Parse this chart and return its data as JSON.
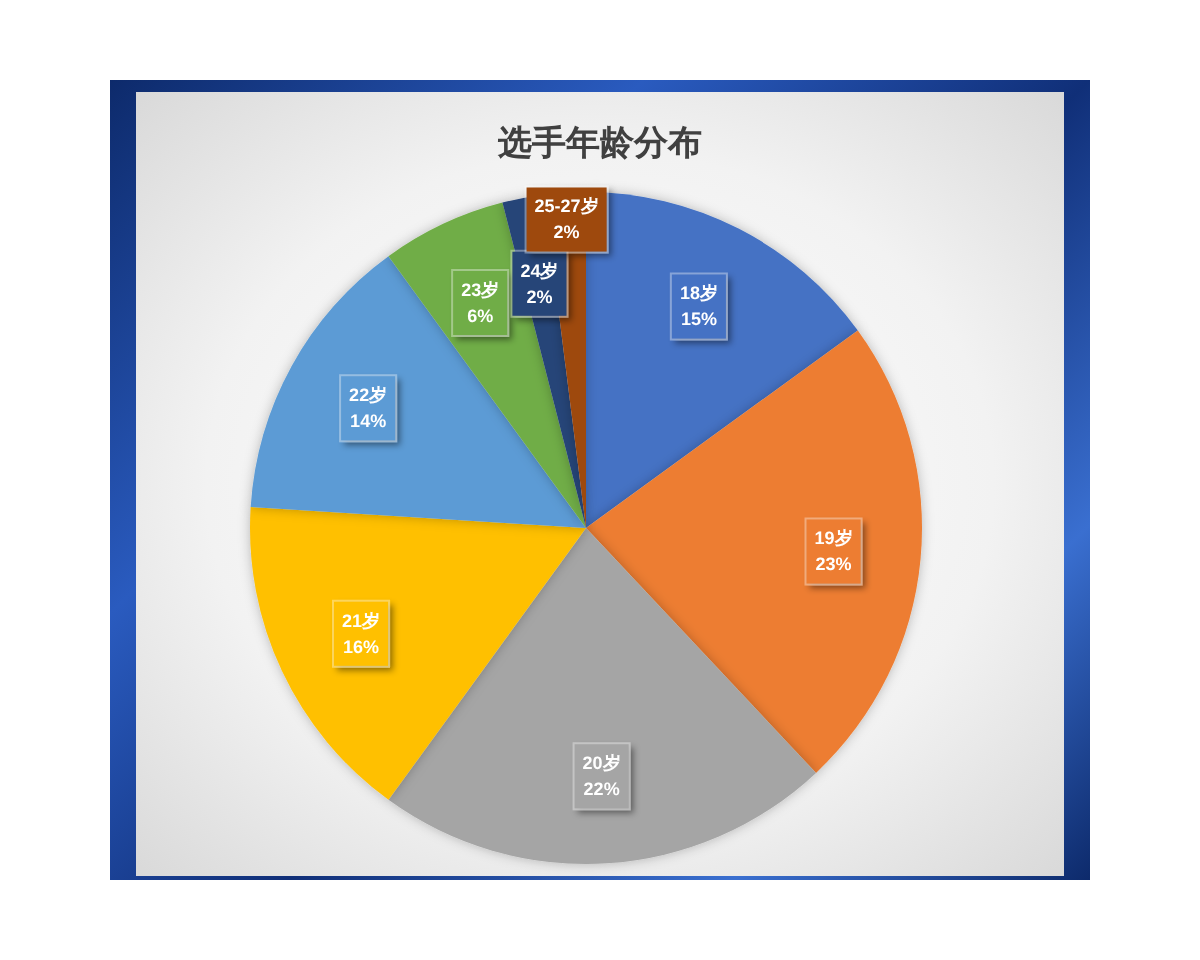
{
  "chart_data": {
    "type": "pie",
    "title": "选手年龄分布",
    "categories": [
      "18岁",
      "19岁",
      "20岁",
      "21岁",
      "22岁",
      "23岁",
      "24岁",
      "25-27岁"
    ],
    "values": [
      15,
      23,
      22,
      16,
      14,
      6,
      2,
      2
    ],
    "colors": [
      "#4472c4",
      "#ed7d31",
      "#a5a5a5",
      "#ffc000",
      "#5b9bd5",
      "#70ad47",
      "#264478",
      "#9e480e"
    ],
    "value_labels": [
      "15%",
      "23%",
      "22%",
      "16%",
      "14%",
      "6%",
      "2%",
      "2%"
    ]
  }
}
